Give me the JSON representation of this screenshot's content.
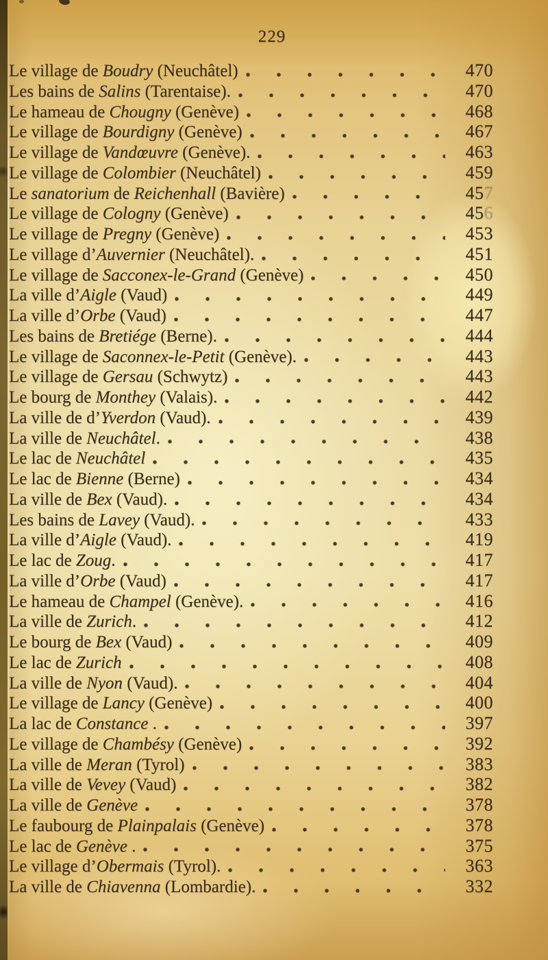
{
  "page": {
    "number": "229",
    "ink_color": "#3c2e1b",
    "paper_color": "#ecdca6",
    "binding_color": "#6a5626"
  },
  "rows": [
    {
      "segments": [
        {
          "t": "Le village de ",
          "i": false
        },
        {
          "t": "Boudry",
          "i": true
        },
        {
          "t": " (Neuchâtel)",
          "i": false
        }
      ],
      "value": "470",
      "faded_last_digit": false
    },
    {
      "segments": [
        {
          "t": "Les bains de ",
          "i": false
        },
        {
          "t": "Salins",
          "i": true
        },
        {
          "t": " (Tarentaise).",
          "i": false
        }
      ],
      "value": "470",
      "faded_last_digit": false
    },
    {
      "segments": [
        {
          "t": "Le hameau de ",
          "i": false
        },
        {
          "t": "Chougny",
          "i": true
        },
        {
          "t": " (Genève)",
          "i": false
        }
      ],
      "value": "468",
      "faded_last_digit": false
    },
    {
      "segments": [
        {
          "t": "Le village de ",
          "i": false
        },
        {
          "t": "Bourdigny",
          "i": true
        },
        {
          "t": " (Genève)",
          "i": false
        }
      ],
      "value": "467",
      "faded_last_digit": false
    },
    {
      "segments": [
        {
          "t": "Le village de ",
          "i": false
        },
        {
          "t": "Vandœuvre",
          "i": true
        },
        {
          "t": " (Genève).",
          "i": false
        }
      ],
      "value": "463",
      "faded_last_digit": false
    },
    {
      "segments": [
        {
          "t": "Le village de ",
          "i": false
        },
        {
          "t": "Colombier",
          "i": true
        },
        {
          "t": " (Neuchâtel)",
          "i": false
        }
      ],
      "value": "459",
      "faded_last_digit": false
    },
    {
      "segments": [
        {
          "t": "Le ",
          "i": false
        },
        {
          "t": "sanatorium",
          "i": true
        },
        {
          "t": " de ",
          "i": false
        },
        {
          "t": "Reichenhall",
          "i": true
        },
        {
          "t": " (Bavière)",
          "i": false
        }
      ],
      "value": "457",
      "faded_last_digit": true
    },
    {
      "segments": [
        {
          "t": "Le village de ",
          "i": false
        },
        {
          "t": "Cologny",
          "i": true
        },
        {
          "t": " (Genève)",
          "i": false
        }
      ],
      "value": "456",
      "faded_last_digit": true
    },
    {
      "segments": [
        {
          "t": "Le village de ",
          "i": false
        },
        {
          "t": "Pregny",
          "i": true
        },
        {
          "t": " (Genève)",
          "i": false
        }
      ],
      "value": "453",
      "faded_last_digit": false
    },
    {
      "segments": [
        {
          "t": "Le village d’",
          "i": false
        },
        {
          "t": "Auvernier",
          "i": true
        },
        {
          "t": " (Neuchâtel).",
          "i": false
        }
      ],
      "value": "451",
      "faded_last_digit": false
    },
    {
      "segments": [
        {
          "t": "Le village de ",
          "i": false
        },
        {
          "t": "Sacconex-le-Grand",
          "i": true
        },
        {
          "t": " (Genève)",
          "i": false
        }
      ],
      "value": "450",
      "faded_last_digit": false
    },
    {
      "segments": [
        {
          "t": "La ville d’",
          "i": false
        },
        {
          "t": "Aigle",
          "i": true
        },
        {
          "t": " (Vaud)",
          "i": false
        }
      ],
      "value": "449",
      "faded_last_digit": false
    },
    {
      "segments": [
        {
          "t": "La ville d’",
          "i": false
        },
        {
          "t": "Orbe",
          "i": true
        },
        {
          "t": " (Vaud)",
          "i": false
        }
      ],
      "value": "447",
      "faded_last_digit": false
    },
    {
      "segments": [
        {
          "t": "Les bains de ",
          "i": false
        },
        {
          "t": "Bretiége",
          "i": true
        },
        {
          "t": " (Berne).",
          "i": false
        }
      ],
      "value": "444",
      "faded_last_digit": false
    },
    {
      "segments": [
        {
          "t": "Le village de ",
          "i": false
        },
        {
          "t": "Saconnex-le-Petit",
          "i": true
        },
        {
          "t": " (Genève).",
          "i": false
        }
      ],
      "value": "443",
      "faded_last_digit": false
    },
    {
      "segments": [
        {
          "t": "Le village de ",
          "i": false
        },
        {
          "t": "Gersau",
          "i": true
        },
        {
          "t": " (Schwytz)",
          "i": false
        }
      ],
      "value": "443",
      "faded_last_digit": false
    },
    {
      "segments": [
        {
          "t": "Le bourg de ",
          "i": false
        },
        {
          "t": "Monthey",
          "i": true
        },
        {
          "t": " (Valais).",
          "i": false
        }
      ],
      "value": "442",
      "faded_last_digit": false
    },
    {
      "segments": [
        {
          "t": "La ville de d’",
          "i": false
        },
        {
          "t": "Yverdon",
          "i": true
        },
        {
          "t": " (Vaud).",
          "i": false
        }
      ],
      "value": "439",
      "faded_last_digit": false
    },
    {
      "segments": [
        {
          "t": "La ville de ",
          "i": false
        },
        {
          "t": "Neuchâtel",
          "i": true
        },
        {
          "t": ".",
          "i": false
        }
      ],
      "value": "438",
      "faded_last_digit": false
    },
    {
      "segments": [
        {
          "t": "Le lac de ",
          "i": false
        },
        {
          "t": "Neuchâtel",
          "i": true
        }
      ],
      "value": "435",
      "faded_last_digit": false
    },
    {
      "segments": [
        {
          "t": "Le lac de ",
          "i": false
        },
        {
          "t": "Bienne",
          "i": true
        },
        {
          "t": " (Berne)",
          "i": false
        }
      ],
      "value": "434",
      "faded_last_digit": false
    },
    {
      "segments": [
        {
          "t": "La ville de ",
          "i": false
        },
        {
          "t": "Bex",
          "i": true
        },
        {
          "t": " (Vaud).",
          "i": false
        }
      ],
      "value": "434",
      "faded_last_digit": false
    },
    {
      "segments": [
        {
          "t": "Les bains de ",
          "i": false
        },
        {
          "t": "Lavey",
          "i": true
        },
        {
          "t": " (Vaud).",
          "i": false
        }
      ],
      "value": "433",
      "faded_last_digit": false
    },
    {
      "segments": [
        {
          "t": "La ville d’",
          "i": false
        },
        {
          "t": "Aigle",
          "i": true
        },
        {
          "t": " (Vaud).",
          "i": false
        }
      ],
      "value": "419",
      "faded_last_digit": false
    },
    {
      "segments": [
        {
          "t": "Le lac de ",
          "i": false
        },
        {
          "t": "Zoug",
          "i": true
        },
        {
          "t": ".",
          "i": false
        }
      ],
      "value": "417",
      "faded_last_digit": false
    },
    {
      "segments": [
        {
          "t": "La ville d’",
          "i": false
        },
        {
          "t": "Orbe",
          "i": true
        },
        {
          "t": " (Vaud)",
          "i": false
        }
      ],
      "value": "417",
      "faded_last_digit": false
    },
    {
      "segments": [
        {
          "t": "Le hameau de ",
          "i": false
        },
        {
          "t": "Champel",
          "i": true
        },
        {
          "t": " (Genève).",
          "i": false
        }
      ],
      "value": "416",
      "faded_last_digit": false
    },
    {
      "segments": [
        {
          "t": "La ville de ",
          "i": false
        },
        {
          "t": "Zurich",
          "i": true
        },
        {
          "t": ".",
          "i": false
        }
      ],
      "value": "412",
      "faded_last_digit": false
    },
    {
      "segments": [
        {
          "t": "Le bourg de ",
          "i": false
        },
        {
          "t": "Bex",
          "i": true
        },
        {
          "t": " (Vaud)",
          "i": false
        }
      ],
      "value": "409",
      "faded_last_digit": false
    },
    {
      "segments": [
        {
          "t": "Le lac de ",
          "i": false
        },
        {
          "t": "Zurich",
          "i": true
        }
      ],
      "value": "408",
      "faded_last_digit": false
    },
    {
      "segments": [
        {
          "t": "La ville de ",
          "i": false
        },
        {
          "t": "Nyon",
          "i": true
        },
        {
          "t": " (Vaud).",
          "i": false
        }
      ],
      "value": "404",
      "faded_last_digit": false
    },
    {
      "segments": [
        {
          "t": "Le village de ",
          "i": false
        },
        {
          "t": "Lancy",
          "i": true
        },
        {
          "t": " (Genève)",
          "i": false
        }
      ],
      "value": "400",
      "faded_last_digit": false
    },
    {
      "segments": [
        {
          "t": "La lac de ",
          "i": false
        },
        {
          "t": "Constance",
          "i": true
        },
        {
          "t": " .",
          "i": false
        }
      ],
      "value": "397",
      "faded_last_digit": false
    },
    {
      "segments": [
        {
          "t": "Le village de ",
          "i": false
        },
        {
          "t": "Chambésy",
          "i": true
        },
        {
          "t": " (Genève)",
          "i": false
        }
      ],
      "value": "392",
      "faded_last_digit": false
    },
    {
      "segments": [
        {
          "t": "La ville de ",
          "i": false
        },
        {
          "t": "Meran",
          "i": true
        },
        {
          "t": " (Tyrol)",
          "i": false
        }
      ],
      "value": "383",
      "faded_last_digit": false
    },
    {
      "segments": [
        {
          "t": "La ville de ",
          "i": false
        },
        {
          "t": "Vevey",
          "i": true
        },
        {
          "t": " (Vaud)",
          "i": false
        }
      ],
      "value": "382",
      "faded_last_digit": false
    },
    {
      "segments": [
        {
          "t": "La ville de ",
          "i": false
        },
        {
          "t": "Genève",
          "i": true
        }
      ],
      "value": "378",
      "faded_last_digit": false
    },
    {
      "segments": [
        {
          "t": "Le faubourg de ",
          "i": false
        },
        {
          "t": "Plainpalais",
          "i": true
        },
        {
          "t": " (Genève)",
          "i": false
        }
      ],
      "value": "378",
      "faded_last_digit": false
    },
    {
      "segments": [
        {
          "t": "Le lac de ",
          "i": false
        },
        {
          "t": "Genève",
          "i": true
        },
        {
          "t": " .",
          "i": false
        }
      ],
      "value": "375",
      "faded_last_digit": false
    },
    {
      "segments": [
        {
          "t": "Le village d’",
          "i": false
        },
        {
          "t": "Obermais",
          "i": true
        },
        {
          "t": " (Tyrol).",
          "i": false
        }
      ],
      "value": "363",
      "faded_last_digit": false
    },
    {
      "segments": [
        {
          "t": "La ville de ",
          "i": false
        },
        {
          "t": "Chiavenna",
          "i": true
        },
        {
          "t": " (Lombardie).",
          "i": false
        }
      ],
      "value": "332",
      "faded_last_digit": false
    }
  ]
}
